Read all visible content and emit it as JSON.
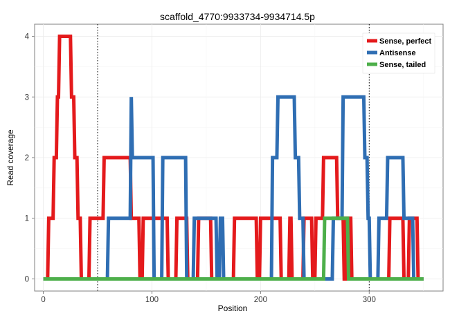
{
  "chart_data": {
    "type": "line",
    "title": "scaffold_4770:9933734-9934714.5p",
    "xlabel": "Position",
    "ylabel": "Read coverage",
    "xlim": [
      -8,
      368
    ],
    "ylim": [
      -0.2,
      4.2
    ],
    "x_ticks": [
      0,
      100,
      200,
      300
    ],
    "y_ticks": [
      0,
      1,
      2,
      3,
      4
    ],
    "vlines": [
      50,
      300
    ],
    "grid": true,
    "legend_position": "top-right",
    "series": [
      {
        "name": "Sense, perfect",
        "color": "#E41A1C",
        "points": [
          [
            0,
            0
          ],
          [
            4,
            0
          ],
          [
            5,
            1
          ],
          [
            9,
            1
          ],
          [
            10,
            2
          ],
          [
            12,
            2
          ],
          [
            13,
            3
          ],
          [
            14,
            3
          ],
          [
            15,
            4
          ],
          [
            25,
            4
          ],
          [
            26,
            3
          ],
          [
            28,
            3
          ],
          [
            29,
            2
          ],
          [
            31,
            2
          ],
          [
            32,
            1
          ],
          [
            34,
            1
          ],
          [
            35,
            0
          ],
          [
            42,
            0
          ],
          [
            43,
            1
          ],
          [
            55,
            1
          ],
          [
            56,
            2
          ],
          [
            80,
            2
          ],
          [
            81,
            1
          ],
          [
            88,
            1
          ],
          [
            89,
            0
          ],
          [
            91,
            0
          ],
          [
            92,
            1
          ],
          [
            114,
            1
          ],
          [
            115,
            0
          ],
          [
            122,
            0
          ],
          [
            123,
            1
          ],
          [
            132,
            1
          ],
          [
            133,
            0
          ],
          [
            142,
            0
          ],
          [
            143,
            1
          ],
          [
            154,
            1
          ],
          [
            155,
            0
          ],
          [
            175,
            0
          ],
          [
            176,
            1
          ],
          [
            196,
            1
          ],
          [
            197,
            0
          ],
          [
            199,
            0
          ],
          [
            200,
            1
          ],
          [
            218,
            1
          ],
          [
            219,
            0
          ],
          [
            226,
            0
          ],
          [
            227,
            1
          ],
          [
            228,
            1
          ],
          [
            229,
            0
          ],
          [
            239,
            0
          ],
          [
            240,
            1
          ],
          [
            247,
            1
          ],
          [
            248,
            0
          ],
          [
            250,
            0
          ],
          [
            251,
            1
          ],
          [
            257,
            1
          ],
          [
            258,
            2
          ],
          [
            270,
            2
          ],
          [
            271,
            1
          ],
          [
            276,
            1
          ],
          [
            277,
            0
          ],
          [
            278,
            0
          ],
          [
            279,
            1
          ],
          [
            283,
            1
          ],
          [
            284,
            0
          ],
          [
            318,
            0
          ],
          [
            319,
            1
          ],
          [
            331,
            1
          ],
          [
            332,
            0
          ],
          [
            336,
            0
          ],
          [
            337,
            1
          ],
          [
            344,
            1
          ],
          [
            345,
            0
          ],
          [
            350,
            0
          ]
        ]
      },
      {
        "name": "Antisense",
        "color": "#2F6EB3",
        "points": [
          [
            0,
            0
          ],
          [
            59,
            0
          ],
          [
            60,
            1
          ],
          [
            80,
            1
          ],
          [
            81,
            3
          ],
          [
            82,
            2
          ],
          [
            101,
            2
          ],
          [
            102,
            0
          ],
          [
            109,
            0
          ],
          [
            110,
            2
          ],
          [
            131,
            2
          ],
          [
            132,
            0
          ],
          [
            138,
            0
          ],
          [
            139,
            1
          ],
          [
            159,
            1
          ],
          [
            160,
            0
          ],
          [
            162,
            0
          ],
          [
            163,
            1
          ],
          [
            165,
            1
          ],
          [
            166,
            0
          ],
          [
            210,
            0
          ],
          [
            211,
            2
          ],
          [
            215,
            2
          ],
          [
            216,
            3
          ],
          [
            231,
            3
          ],
          [
            232,
            2
          ],
          [
            235,
            2
          ],
          [
            236,
            1
          ],
          [
            239,
            1
          ],
          [
            240,
            0
          ],
          [
            266,
            0
          ],
          [
            267,
            1
          ],
          [
            275,
            1
          ],
          [
            276,
            3
          ],
          [
            295,
            3
          ],
          [
            296,
            2
          ],
          [
            298,
            2
          ],
          [
            299,
            1
          ],
          [
            300,
            1
          ],
          [
            301,
            0
          ],
          [
            308,
            0
          ],
          [
            309,
            1
          ],
          [
            316,
            1
          ],
          [
            317,
            2
          ],
          [
            331,
            2
          ],
          [
            332,
            1
          ],
          [
            340,
            1
          ],
          [
            341,
            0
          ],
          [
            350,
            0
          ]
        ]
      },
      {
        "name": "Sense, tailed",
        "color": "#4DAF4A",
        "points": [
          [
            0,
            0
          ],
          [
            258,
            0
          ],
          [
            259,
            1
          ],
          [
            280,
            1
          ],
          [
            281,
            0
          ],
          [
            350,
            0
          ]
        ]
      }
    ]
  }
}
